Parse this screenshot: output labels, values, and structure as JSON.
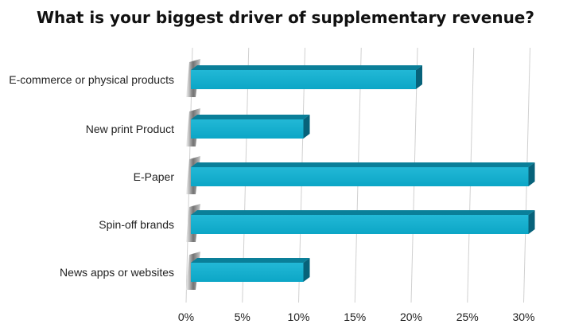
{
  "chart_data": {
    "type": "bar",
    "orientation": "horizontal",
    "title": "What is your biggest driver of supplementary revenue?",
    "categories": [
      "E-commerce or physical products",
      "New print Product",
      "E-Paper",
      "Spin-off brands",
      "News apps or websites"
    ],
    "values": [
      20,
      10,
      30,
      30,
      10
    ],
    "unit": "%",
    "xlim": [
      0,
      31
    ],
    "ticks": [
      "0%",
      "5%",
      "10%",
      "15%",
      "20%",
      "25%",
      "30%"
    ],
    "tick_values": [
      0,
      5,
      10,
      15,
      20,
      25,
      30
    ],
    "xlabel": "",
    "ylabel": "",
    "grid": true,
    "legend": "none",
    "colors": {
      "bar_front": "#0eaccc",
      "bar_top": "#0a7f99",
      "bar_side": "#07627a",
      "grid": "#d0d0d0"
    }
  }
}
